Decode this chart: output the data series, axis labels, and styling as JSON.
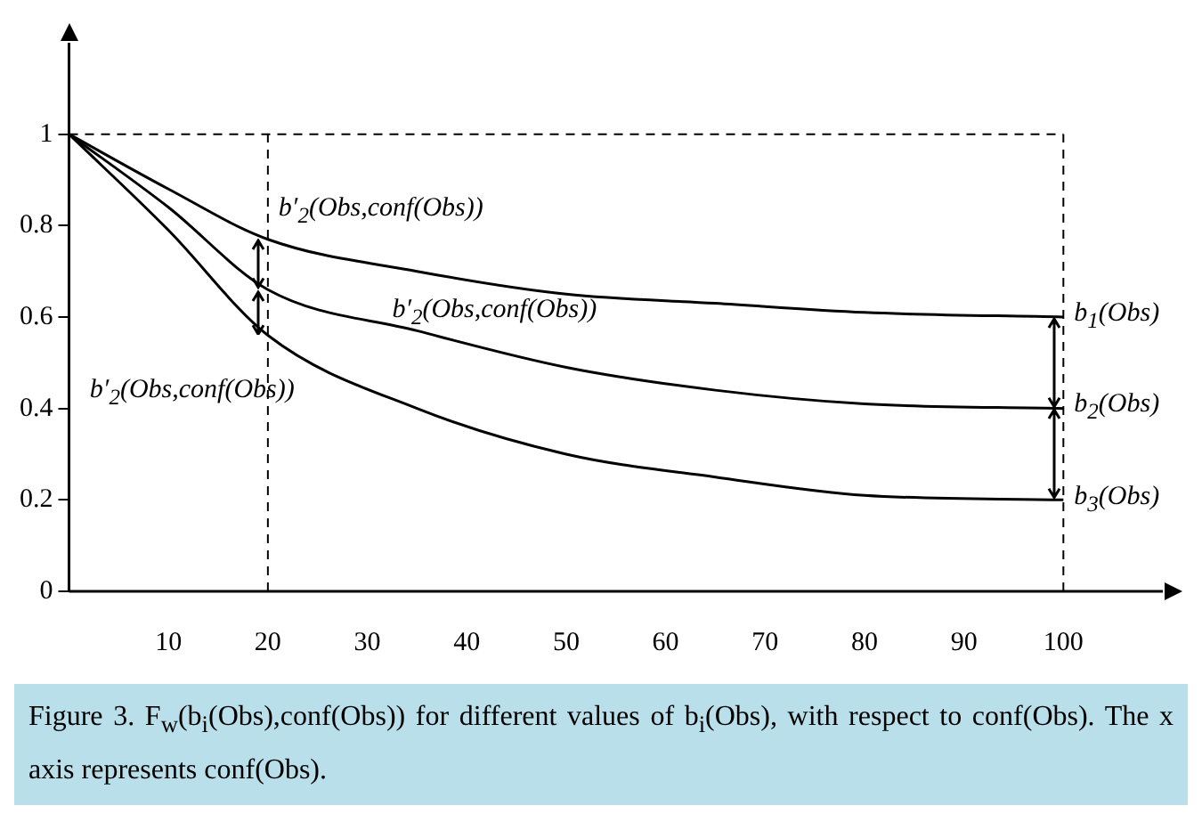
{
  "chart_data": {
    "type": "line",
    "x": [
      0,
      10,
      20,
      35,
      50,
      65,
      80,
      100
    ],
    "series": [
      {
        "color": "#000000",
        "values": [
          1,
          0.88,
          0.77,
          0.7,
          0.65,
          0.63,
          0.61,
          0.6
        ]
      },
      {
        "color": "#000000",
        "values": [
          1,
          0.84,
          0.66,
          0.57,
          0.49,
          0.44,
          0.41,
          0.4
        ]
      },
      {
        "color": "#000000",
        "values": [
          1,
          0.79,
          0.56,
          0.4,
          0.3,
          0.25,
          0.21,
          0.2
        ]
      }
    ],
    "xlim": [
      0,
      110
    ],
    "xticks": [
      10,
      20,
      30,
      40,
      50,
      60,
      70,
      80,
      90,
      100
    ],
    "ylim": [
      0,
      1.2
    ],
    "yticks": [
      0,
      0.2,
      0.4,
      0.6,
      0.8,
      1
    ],
    "grid": false,
    "legend": false,
    "marker": "none",
    "line_style": "solid",
    "ref_lines": [
      {
        "axis": "y",
        "value": 1,
        "color": "#000000",
        "line_style": "dashed"
      },
      {
        "axis": "x",
        "value": 20,
        "color": "#000000",
        "line_style": "dashed"
      },
      {
        "axis": "x",
        "value": 100,
        "color": "#000000",
        "line_style": "dashed"
      }
    ],
    "annotations": [
      {
        "text": "b′$_{2}$(Obs,conf(Obs))",
        "x": 20,
        "y": 0.77
      },
      {
        "text": "b′$_{2}$(Obs,conf(Obs))",
        "x": 35,
        "y": 0.57
      },
      {
        "text": "b′$_{2}$(Obs,conf(Obs))",
        "x": 20,
        "y": 0.56
      },
      {
        "text": "b$_{1}$(Obs)",
        "x": 100,
        "y": 0.6
      },
      {
        "text": "b$_{2}$(Obs)",
        "x": 100,
        "y": 0.4
      },
      {
        "text": "b$_{3}$(Obs)",
        "x": 100,
        "y": 0.2
      },
      "Figure 3. F$_{w}$(b$_{i}$(Obs),conf(Obs)) for different values of b$_{i}$(Obs), with respect to conf(Obs). The x axis represents conf(Obs)."
    ]
  }
}
